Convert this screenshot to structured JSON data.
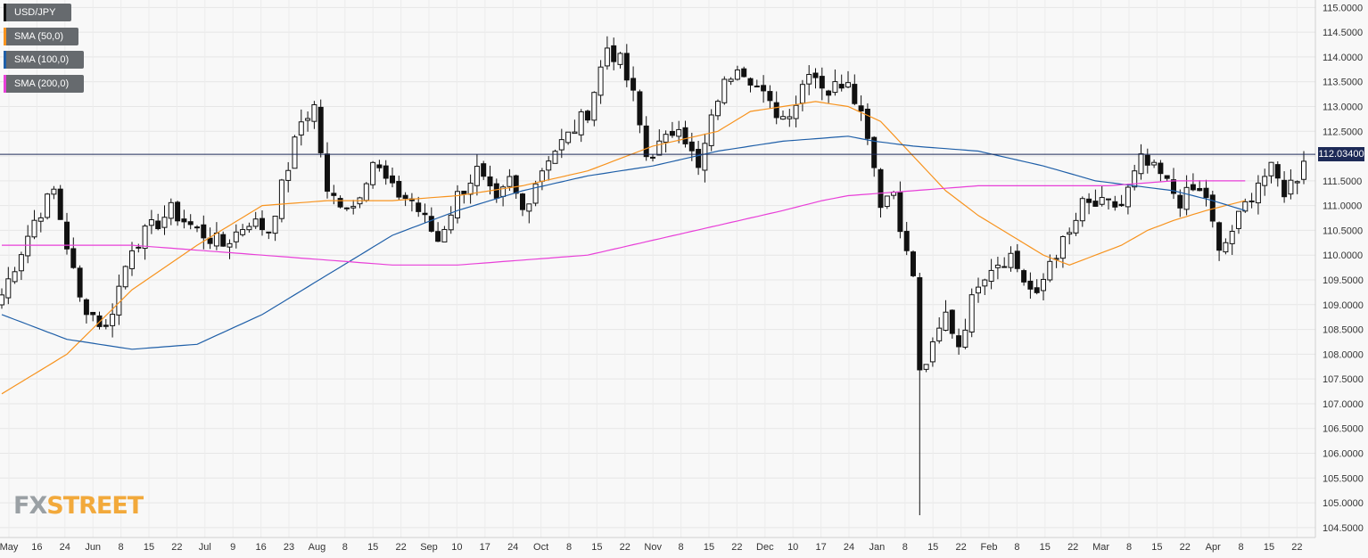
{
  "legend": [
    {
      "label": "USD/JPY",
      "color": "#111111"
    },
    {
      "label": "SMA (50,0)",
      "color": "#f7931e"
    },
    {
      "label": "SMA (100,0)",
      "color": "#1f5fa8"
    },
    {
      "label": "SMA (200,0)",
      "color": "#e83fd8"
    }
  ],
  "logo": {
    "part1": "FX",
    "part2": "STREET"
  },
  "last_price": "112.03400",
  "chart_data": {
    "type": "candlestick",
    "ylim": [
      104.3,
      115.15
    ],
    "y_ticks": [
      "115.0000",
      "114.5000",
      "114.0000",
      "113.5000",
      "113.0000",
      "112.5000",
      "112.0000",
      "111.5000",
      "111.0000",
      "110.5000",
      "110.0000",
      "109.5000",
      "109.0000",
      "108.5000",
      "108.0000",
      "107.5000",
      "107.0000",
      "106.5000",
      "106.0000",
      "105.5000",
      "105.0000",
      "104.5000"
    ],
    "x_ticks": [
      "May",
      "16",
      "24",
      "Jun",
      "8",
      "15",
      "22",
      "Jul",
      "9",
      "16",
      "23",
      "Aug",
      "8",
      "15",
      "22",
      "Sep",
      "10",
      "17",
      "24",
      "Oct",
      "8",
      "15",
      "22",
      "Nov",
      "8",
      "15",
      "22",
      "Dec",
      "10",
      "17",
      "24",
      "Jan",
      "8",
      "15",
      "22",
      "Feb",
      "8",
      "15",
      "22",
      "Mar",
      "8",
      "15",
      "22",
      "Apr",
      "8",
      "15",
      "22"
    ],
    "last_price": 112.034,
    "series": [
      {
        "name": "USD/JPY",
        "type": "candlestick",
        "anchors": [
          [
            0,
            109.2
          ],
          [
            2,
            109.8
          ],
          [
            5,
            110.7
          ],
          [
            8,
            111.3
          ],
          [
            12,
            109.1
          ],
          [
            16,
            108.5
          ],
          [
            20,
            110.2
          ],
          [
            26,
            110.9
          ],
          [
            30,
            110.5
          ],
          [
            34,
            110.2
          ],
          [
            38,
            110.7
          ],
          [
            41,
            110.5
          ],
          [
            44,
            111.8
          ],
          [
            46,
            112.7
          ],
          [
            48,
            113.0
          ],
          [
            50,
            111.2
          ],
          [
            54,
            111.0
          ],
          [
            57,
            111.9
          ],
          [
            60,
            111.3
          ],
          [
            63,
            111.1
          ],
          [
            67,
            110.3
          ],
          [
            70,
            111.2
          ],
          [
            73,
            111.7
          ],
          [
            76,
            111.0
          ],
          [
            78,
            111.5
          ],
          [
            80,
            110.9
          ],
          [
            82,
            111.5
          ],
          [
            84,
            112.0
          ],
          [
            87,
            112.4
          ],
          [
            90,
            112.9
          ],
          [
            93,
            114.2
          ],
          [
            95,
            113.9
          ],
          [
            97,
            113.2
          ],
          [
            99,
            112.0
          ],
          [
            102,
            112.3
          ],
          [
            104,
            112.7
          ],
          [
            107,
            111.7
          ],
          [
            110,
            113.2
          ],
          [
            113,
            113.9
          ],
          [
            115,
            113.6
          ],
          [
            118,
            113.0
          ],
          [
            120,
            112.8
          ],
          [
            122,
            113.1
          ],
          [
            124,
            113.8
          ],
          [
            127,
            113.3
          ],
          [
            130,
            113.6
          ],
          [
            133,
            112.5
          ],
          [
            135,
            111.1
          ],
          [
            137,
            111.3
          ],
          [
            139,
            110.0
          ],
          [
            140,
            109.6
          ],
          [
            141,
            107.6
          ],
          [
            143,
            108.1
          ],
          [
            145,
            108.8
          ],
          [
            147,
            108.2
          ],
          [
            150,
            109.5
          ],
          [
            152,
            109.8
          ],
          [
            155,
            110.0
          ],
          [
            157,
            109.5
          ],
          [
            159,
            109.1
          ],
          [
            161,
            109.9
          ],
          [
            164,
            110.4
          ],
          [
            166,
            111.0
          ],
          [
            169,
            111.0
          ],
          [
            172,
            111.0
          ],
          [
            175,
            111.9
          ],
          [
            178,
            111.6
          ],
          [
            181,
            111.1
          ],
          [
            183,
            111.3
          ],
          [
            185,
            111.2
          ],
          [
            187,
            110.0
          ],
          [
            189,
            110.5
          ],
          [
            191,
            111.0
          ],
          [
            193,
            111.5
          ],
          [
            195,
            111.7
          ],
          [
            197,
            111.3
          ],
          [
            199,
            111.6
          ],
          [
            200,
            112.0
          ]
        ]
      },
      {
        "name": "SMA (50,0)",
        "color": "#f7931e",
        "points": [
          [
            0,
            107.2
          ],
          [
            10,
            108.0
          ],
          [
            20,
            109.3
          ],
          [
            30,
            110.2
          ],
          [
            40,
            111.0
          ],
          [
            50,
            111.1
          ],
          [
            60,
            111.1
          ],
          [
            70,
            111.2
          ],
          [
            80,
            111.4
          ],
          [
            90,
            111.7
          ],
          [
            100,
            112.2
          ],
          [
            110,
            112.5
          ],
          [
            115,
            112.9
          ],
          [
            120,
            113.0
          ],
          [
            125,
            113.1
          ],
          [
            130,
            113.0
          ],
          [
            135,
            112.7
          ],
          [
            140,
            112.0
          ],
          [
            145,
            111.3
          ],
          [
            150,
            110.8
          ],
          [
            155,
            110.4
          ],
          [
            160,
            110.0
          ],
          [
            164,
            109.8
          ],
          [
            168,
            110.0
          ],
          [
            172,
            110.2
          ],
          [
            176,
            110.5
          ],
          [
            180,
            110.7
          ],
          [
            185,
            110.9
          ],
          [
            191,
            111.1
          ]
        ]
      },
      {
        "name": "SMA (100,0)",
        "color": "#1f5fa8",
        "points": [
          [
            0,
            108.8
          ],
          [
            10,
            108.3
          ],
          [
            20,
            108.1
          ],
          [
            30,
            108.2
          ],
          [
            40,
            108.8
          ],
          [
            50,
            109.6
          ],
          [
            60,
            110.4
          ],
          [
            70,
            110.9
          ],
          [
            80,
            111.3
          ],
          [
            90,
            111.6
          ],
          [
            100,
            111.8
          ],
          [
            110,
            112.1
          ],
          [
            120,
            112.3
          ],
          [
            130,
            112.4
          ],
          [
            134,
            112.3
          ],
          [
            140,
            112.2
          ],
          [
            150,
            112.1
          ],
          [
            160,
            111.8
          ],
          [
            168,
            111.5
          ],
          [
            174,
            111.4
          ],
          [
            180,
            111.3
          ],
          [
            186,
            111.1
          ],
          [
            191,
            110.9
          ]
        ]
      },
      {
        "name": "SMA (200,0)",
        "color": "#e83fd8",
        "points": [
          [
            0,
            110.2
          ],
          [
            10,
            110.2
          ],
          [
            20,
            110.2
          ],
          [
            30,
            110.1
          ],
          [
            40,
            110.0
          ],
          [
            50,
            109.9
          ],
          [
            60,
            109.8
          ],
          [
            70,
            109.8
          ],
          [
            80,
            109.9
          ],
          [
            90,
            110.0
          ],
          [
            100,
            110.3
          ],
          [
            110,
            110.6
          ],
          [
            120,
            110.9
          ],
          [
            126,
            111.1
          ],
          [
            130,
            111.2
          ],
          [
            140,
            111.3
          ],
          [
            150,
            111.4
          ],
          [
            160,
            111.4
          ],
          [
            170,
            111.4
          ],
          [
            180,
            111.5
          ],
          [
            191,
            111.5
          ]
        ]
      }
    ]
  }
}
